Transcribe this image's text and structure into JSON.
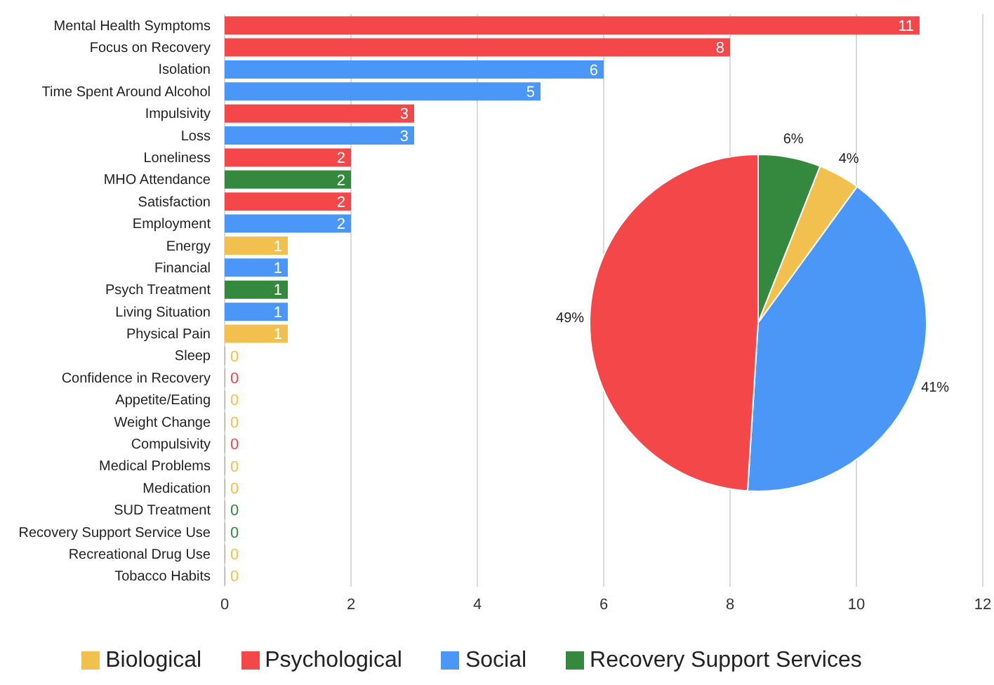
{
  "chart_data": [
    {
      "type": "bar",
      "orientation": "horizontal",
      "stacked": true,
      "categories": [
        "Mental Health Symptoms",
        "Focus on Recovery",
        "Isolation",
        "Time Spent Around Alcohol",
        "Impulsivity",
        "Loss",
        "Loneliness",
        "MHO Attendance",
        "Satisfaction",
        "Employment",
        "Energy",
        "Financial",
        "Psych Treatment",
        "Living Situation",
        "Physical Pain",
        "Sleep",
        "Confidence in Recovery",
        "Appetite/Eating",
        "Weight Change",
        "Compulsivity",
        "Medical Problems",
        "Medication",
        "SUD Treatment",
        "Recovery Support Service Use",
        "Recreational Drug Use",
        "Tobacco Habits"
      ],
      "series": [
        {
          "name": "Biological",
          "color": "#f1c04f",
          "values": [
            null,
            null,
            null,
            null,
            null,
            null,
            null,
            null,
            null,
            null,
            1,
            null,
            null,
            null,
            1,
            0,
            null,
            0,
            0,
            null,
            0,
            0,
            null,
            null,
            0,
            0
          ]
        },
        {
          "name": "Psychological",
          "color": "#f4474a",
          "values": [
            11,
            8,
            null,
            null,
            3,
            null,
            2,
            null,
            2,
            null,
            null,
            null,
            null,
            null,
            null,
            null,
            0,
            null,
            null,
            0,
            null,
            null,
            null,
            null,
            null,
            null
          ]
        },
        {
          "name": "Social",
          "color": "#4a97f7",
          "values": [
            null,
            null,
            6,
            5,
            null,
            3,
            null,
            null,
            null,
            2,
            null,
            1,
            null,
            1,
            null,
            null,
            null,
            null,
            null,
            null,
            null,
            null,
            null,
            null,
            null,
            null
          ]
        },
        {
          "name": "Recovery Support Services",
          "color": "#34893f",
          "values": [
            null,
            null,
            null,
            null,
            null,
            null,
            null,
            2,
            null,
            null,
            null,
            null,
            1,
            null,
            null,
            null,
            null,
            null,
            null,
            null,
            null,
            null,
            0,
            0,
            null,
            null
          ]
        }
      ],
      "xlim": [
        0,
        12
      ],
      "xticks": [
        0,
        2,
        4,
        6,
        8,
        10,
        12
      ],
      "grid": "x",
      "legend": "bottom",
      "data_labels": true
    },
    {
      "type": "pie",
      "categories": [
        null,
        null,
        null,
        null
      ],
      "values": [
        6,
        4,
        41,
        49
      ],
      "colors": [
        "#34893f",
        "#f1c04f",
        "#4a97f7",
        "#f4474a"
      ],
      "value_labels": [
        "6%",
        "4%",
        "41%",
        "49%"
      ]
    }
  ]
}
